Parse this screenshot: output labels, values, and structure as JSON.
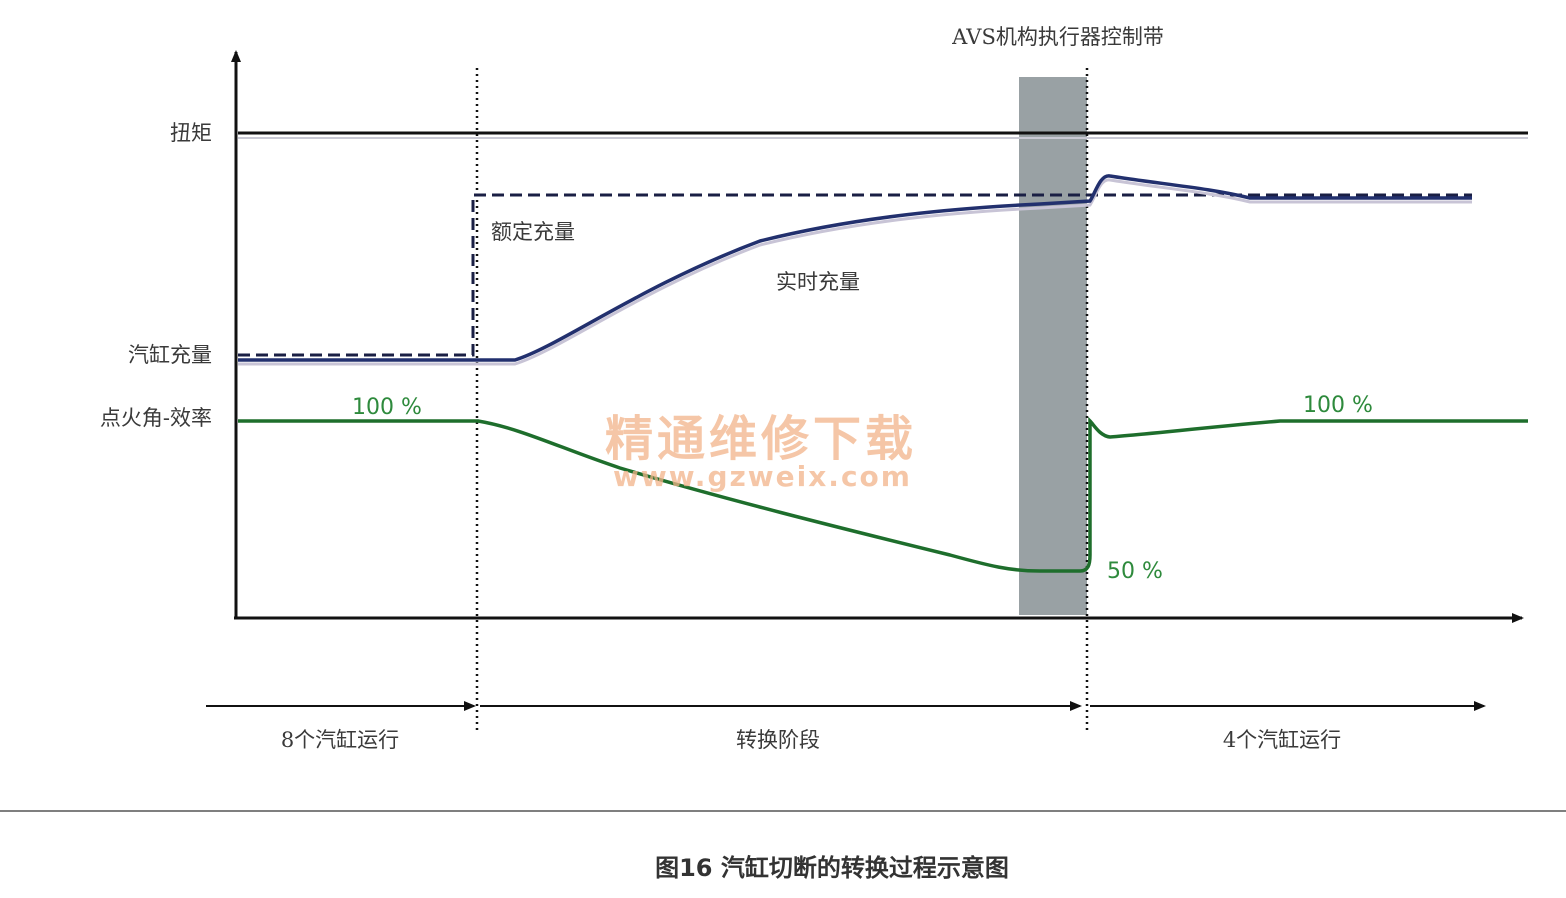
{
  "labels": {
    "avs_band": "AVS机构执行器控制带",
    "torque": "扭矩",
    "rated_charge": "额定充量",
    "realtime_charge": "实时充量",
    "cylinder_charge": "汽缸充量",
    "ignition_efficiency": "点火角-效率",
    "pct_100_left": "100 %",
    "pct_100_right": "100 %",
    "pct_50": "50 %"
  },
  "phases": {
    "eight_cyl": "8个汽缸运行",
    "transition": "转换阶段",
    "four_cyl": "4个汽缸运行"
  },
  "watermark": {
    "line1": "精通维修下载",
    "line2": "www.gzweix.com"
  },
  "caption": "图16 汽缸切断的转换过程示意图",
  "colors": {
    "charge_line": "#22306e",
    "efficiency_line": "#1e6e2c",
    "axis": "#111111",
    "avs_band": "#8e979a",
    "watermark": "#f2b48a"
  }
}
